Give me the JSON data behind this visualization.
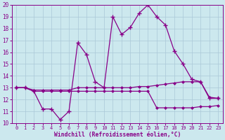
{
  "xlabel": "Windchill (Refroidissement éolien,°C)",
  "bg_color": "#cce8ee",
  "grid_color": "#aac8d8",
  "line_color": "#880088",
  "xlim": [
    -0.5,
    23.5
  ],
  "ylim": [
    10,
    20
  ],
  "yticks": [
    10,
    11,
    12,
    13,
    14,
    15,
    16,
    17,
    18,
    19,
    20
  ],
  "xticks": [
    0,
    1,
    2,
    3,
    4,
    5,
    6,
    7,
    8,
    9,
    10,
    11,
    12,
    13,
    14,
    15,
    16,
    17,
    18,
    19,
    20,
    21,
    22,
    23
  ],
  "series1_x": [
    0,
    1,
    2,
    3,
    4,
    5,
    6,
    7,
    8,
    9,
    10,
    11,
    12,
    13,
    14,
    15,
    16,
    17,
    18,
    19,
    20,
    21,
    22,
    23
  ],
  "series1_y": [
    13.0,
    13.0,
    12.7,
    11.2,
    11.2,
    10.3,
    11.0,
    16.8,
    15.8,
    13.5,
    13.0,
    19.0,
    17.5,
    18.1,
    19.3,
    20.0,
    19.0,
    18.3,
    16.1,
    15.0,
    13.7,
    13.5,
    12.1,
    12.1
  ],
  "series2_x": [
    0,
    1,
    2,
    3,
    4,
    5,
    6,
    7,
    8,
    9,
    10,
    11,
    12,
    13,
    14,
    15,
    16,
    17,
    18,
    19,
    20,
    21,
    22,
    23
  ],
  "series2_y": [
    13.0,
    13.0,
    12.8,
    12.8,
    12.8,
    12.8,
    12.8,
    13.0,
    13.0,
    13.0,
    13.0,
    13.0,
    13.0,
    13.0,
    13.1,
    13.1,
    13.2,
    13.3,
    13.4,
    13.5,
    13.5,
    13.5,
    12.2,
    12.1
  ],
  "series3_x": [
    0,
    1,
    2,
    3,
    4,
    5,
    6,
    7,
    8,
    9,
    10,
    11,
    12,
    13,
    14,
    15,
    16,
    17,
    18,
    19,
    20,
    21,
    22,
    23
  ],
  "series3_y": [
    13.0,
    13.0,
    12.7,
    12.7,
    12.7,
    12.7,
    12.7,
    12.7,
    12.7,
    12.7,
    12.7,
    12.7,
    12.7,
    12.7,
    12.7,
    12.7,
    11.3,
    11.3,
    11.3,
    11.3,
    11.3,
    11.4,
    11.4,
    11.5
  ]
}
